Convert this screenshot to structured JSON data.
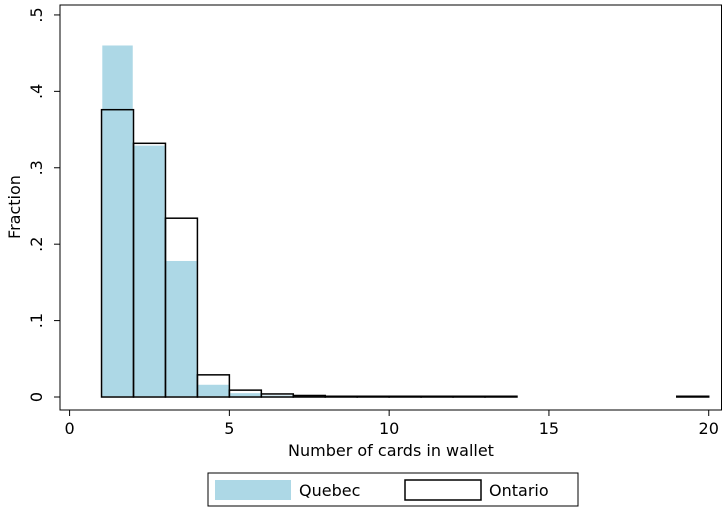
{
  "chart_data": {
    "type": "histogram",
    "x_label": "Number of cards in wallet",
    "y_label": "Fraction",
    "bins": [
      1,
      2,
      3,
      4,
      5,
      6,
      7,
      8,
      9,
      10,
      11,
      12,
      13,
      14,
      15,
      16,
      17,
      18,
      19,
      20
    ],
    "series": [
      {
        "name": "Quebec",
        "color": "#add8e6",
        "style": "filled",
        "values": [
          0.461,
          0.33,
          0.179,
          0.017,
          0.006,
          0.003,
          0.001,
          0.001,
          0.0005,
          0.0005,
          0.0005,
          0.0005,
          0.0005,
          0,
          0,
          0,
          0,
          0,
          0.0005
        ]
      },
      {
        "name": "Ontario",
        "color": "#000000",
        "style": "outline",
        "values": [
          0.376,
          0.332,
          0.234,
          0.029,
          0.009,
          0.004,
          0.002,
          0.001,
          0.001,
          0.001,
          0.001,
          0.001,
          0.001,
          0,
          0,
          0,
          0,
          0,
          0.001
        ]
      }
    ],
    "xlim": [
      -0.3,
      20.4
    ],
    "ylim": [
      -0.017,
      0.513
    ],
    "xticks": [
      0,
      5,
      10,
      15,
      20
    ],
    "yticks": [
      0,
      {
        "value": 0.1,
        "label": ".1"
      },
      {
        "value": 0.2,
        "label": ".2"
      },
      {
        "value": 0.3,
        "label": ".3"
      },
      {
        "value": 0.4,
        "label": ".4"
      },
      {
        "value": 0.5,
        "label": ".5"
      }
    ],
    "legend": "bottom"
  }
}
